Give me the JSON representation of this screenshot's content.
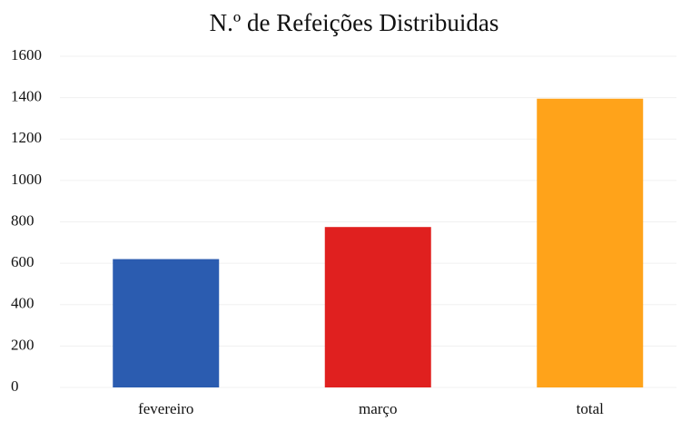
{
  "chart_data": {
    "type": "bar",
    "title": "N.º de Refeições Distribuidas",
    "categories": [
      "fevereiro",
      "março",
      "total"
    ],
    "values": [
      620,
      775,
      1395
    ],
    "colors": [
      "#2b5cb0",
      "#e0201f",
      "#ffa31a"
    ],
    "ylim": [
      0,
      1600
    ],
    "yticks": [
      0,
      200,
      400,
      600,
      800,
      1000,
      1200,
      1400,
      1600
    ],
    "grid": true
  }
}
